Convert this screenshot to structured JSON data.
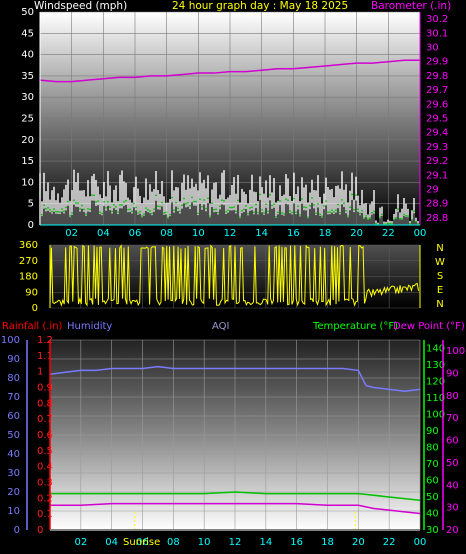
{
  "chart_data": [
    {
      "type": "line",
      "header_title": "24 hour graph day : May 18 2025",
      "ylabel_left": "Windspeed (mph)",
      "ylabel_right": "Barometer (.in)",
      "x_ticks": [
        "02",
        "04",
        "06",
        "08",
        "10",
        "12",
        "14",
        "16",
        "18",
        "20",
        "22",
        "00"
      ],
      "y_left_ticks": [
        "0",
        "5",
        "10",
        "15",
        "20",
        "25",
        "30",
        "35",
        "40",
        "45",
        "50"
      ],
      "y_left_lim": [
        0,
        50
      ],
      "y_right_ticks": [
        "28.8",
        "28.9",
        "29",
        "29.1",
        "29.2",
        "29.3",
        "29.4",
        "29.5",
        "29.6",
        "29.7",
        "29.8",
        "29.9",
        "30",
        "30.1",
        "30.2"
      ],
      "y_right_lim": [
        28.75,
        30.25
      ],
      "x_lim": [
        0,
        24
      ],
      "series": [
        {
          "color": "#d000d0",
          "axis": "right",
          "x": [
            0,
            1,
            2,
            3,
            4,
            5,
            6,
            7,
            8,
            9,
            10,
            11,
            12,
            13,
            14,
            15,
            16,
            17,
            18,
            19,
            20,
            21,
            22,
            23,
            24
          ],
          "values": [
            29.77,
            29.76,
            29.76,
            29.77,
            29.78,
            29.79,
            29.79,
            29.8,
            29.8,
            29.81,
            29.82,
            29.82,
            29.83,
            29.83,
            29.84,
            29.85,
            29.85,
            29.86,
            29.87,
            29.88,
            29.89,
            29.89,
            29.9,
            29.91,
            29.91
          ]
        }
      ],
      "wind_bands": {
        "gust_color": "#ffffff",
        "avg_color": "#00e000",
        "dark_color": "#404040"
      }
    },
    {
      "type": "scatter",
      "x_ticks": [
        "02",
        "04",
        "06",
        "08",
        "10",
        "12",
        "14",
        "16",
        "18",
        "20",
        "22",
        "00"
      ],
      "y_ticks": [
        "0",
        "90",
        "180",
        "270",
        "360"
      ],
      "y_lim": [
        0,
        360
      ],
      "direction_labels": [
        "N",
        "W",
        "S",
        "E",
        "N"
      ],
      "series": [
        {
          "color": "#ffff00"
        }
      ]
    },
    {
      "type": "line",
      "labels": {
        "rainfall": "Rainfall (.in)",
        "humidity": "Humidity",
        "aqi": "AQI",
        "temperature": "Temperature (°F)",
        "dewpoint": "Dew Point (°F)"
      },
      "x_ticks": [
        "02",
        "04",
        "06",
        "08",
        "10",
        "12",
        "14",
        "16",
        "18",
        "20",
        "22",
        "00"
      ],
      "sunrise_label": "Sunrise",
      "y_hum_ticks": [
        "0",
        "10",
        "20",
        "30",
        "40",
        "50",
        "60",
        "70",
        "80",
        "90",
        "100"
      ],
      "y_rain_ticks": [
        "0",
        "0.1",
        "0.2",
        "0.3",
        "0.4",
        "0.5",
        "0.6",
        "0.7",
        "0.8",
        "0.9",
        "1",
        "1.1",
        "1.2"
      ],
      "y_temp_ticks": [
        "30",
        "40",
        "50",
        "60",
        "70",
        "80",
        "90",
        "100",
        "110",
        "120",
        "130",
        "140"
      ],
      "y_dew_ticks": [
        "20",
        "30",
        "40",
        "50",
        "60",
        "70",
        "80",
        "90",
        "100"
      ],
      "series": [
        {
          "name": "Humidity",
          "color": "#7a7aff",
          "axis": "humidity",
          "x": [
            0,
            1,
            2,
            3,
            4,
            5,
            6,
            7,
            8,
            9,
            10,
            11,
            12,
            13,
            14,
            15,
            16,
            17,
            18,
            19,
            20,
            20.5,
            21,
            22,
            23,
            24
          ],
          "values": [
            82,
            83,
            84,
            84,
            85,
            85,
            85,
            86,
            85,
            85,
            85,
            85,
            85,
            85,
            85,
            85,
            85,
            85,
            85,
            85,
            84,
            76,
            75,
            74,
            73,
            74
          ]
        },
        {
          "name": "Temperature",
          "color": "#00c000",
          "axis": "temperature",
          "x": [
            0,
            2,
            4,
            6,
            8,
            10,
            12,
            14,
            16,
            18,
            20,
            21,
            22,
            23,
            24
          ],
          "values": [
            52,
            52,
            52,
            52,
            52,
            52,
            53,
            52,
            52,
            52,
            52,
            51,
            50,
            49,
            48
          ]
        },
        {
          "name": "Dew Point",
          "color": "#d000d0",
          "axis": "temperature",
          "x": [
            0,
            2,
            4,
            6,
            8,
            10,
            12,
            14,
            16,
            18,
            20,
            21,
            22,
            23,
            24
          ],
          "values": [
            45,
            45,
            46,
            46,
            46,
            46,
            46,
            46,
            46,
            45,
            45,
            43,
            42,
            41,
            40
          ]
        },
        {
          "name": "Rainfall",
          "color": "#ff0000",
          "axis": "rain",
          "x": [
            0,
            24
          ],
          "values": [
            0,
            0
          ]
        }
      ]
    }
  ]
}
